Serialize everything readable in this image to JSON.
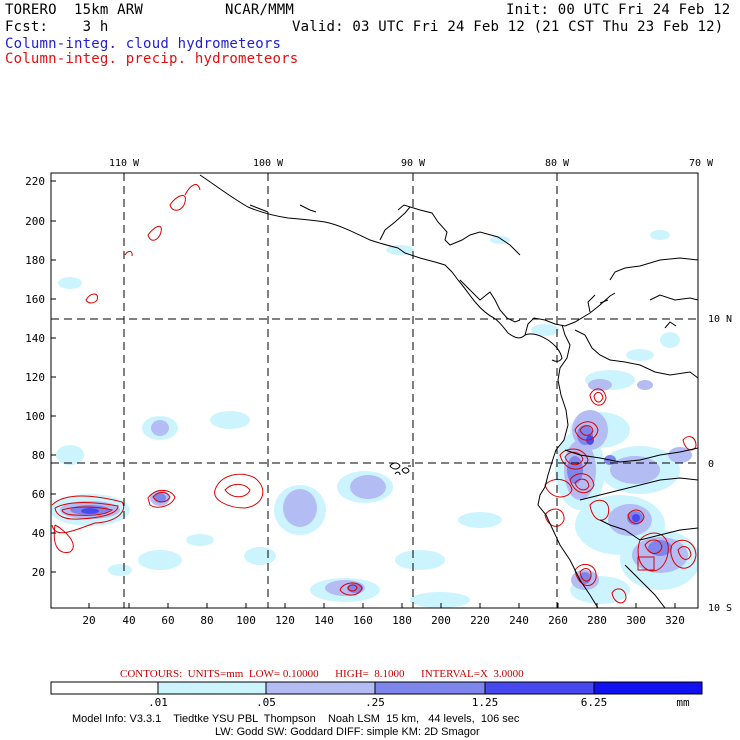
{
  "header": {
    "model": "TORERO  15km ARW",
    "org": "NCAR/MMM",
    "init": "Init: 00 UTC Fri 24 Feb 12",
    "fcst": "Fcst:    3 h",
    "valid": "Valid: 03 UTC Fri 24 Feb 12 (21 CST Thu 23 Feb 12)",
    "legend_cloud": "Column-integ. cloud hydrometeors",
    "legend_precip": "Column-integ. precip. hydrometeors"
  },
  "map": {
    "lon_labels": [
      "110 W",
      "100 W",
      "90 W",
      "80 W",
      "70 W"
    ],
    "lat_labels": [
      "10 N",
      "0",
      "10 S"
    ],
    "y_ticks": [
      "220",
      "200",
      "180",
      "160",
      "140",
      "120",
      "100",
      "80",
      "60",
      "40",
      "20"
    ],
    "x_ticks": [
      "20",
      "40",
      "60",
      "80",
      "100",
      "120",
      "140",
      "160",
      "180",
      "200",
      "220",
      "240",
      "260",
      "280",
      "300",
      "320"
    ]
  },
  "contour_info": "CONTOURS:  UNITS=mm  LOW= 0.10000      HIGH=  8.1000      INTERVAL=X  3.0000",
  "colorbar": {
    "tick_labels": [
      ".01",
      ".05",
      ".25",
      "1.25",
      "6.25"
    ],
    "unit": "mm",
    "colors": [
      "#ffffff",
      "#ccf4ff",
      "#b4bcf4",
      "#7e86ec",
      "#4848f0",
      "#1010f0"
    ]
  },
  "footer": {
    "line1": "Model Info: V3.3.1    Tiedtke YSU PBL  Thompson    Noah LSM  15 km,   44 levels,  106 sec",
    "line2": "LW: Godd SW: Goddard DIFF: simple KM: 2D Smagor"
  },
  "colors": {
    "cloud_text": "#2020d0",
    "precip_text": "#e01010",
    "contour": "#dd0000",
    "info_text": "#cc0000"
  }
}
